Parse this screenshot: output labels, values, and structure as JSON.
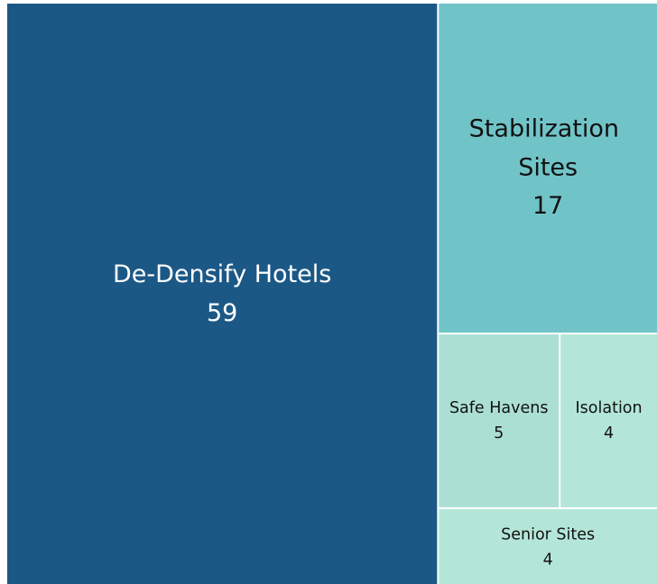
{
  "chart_data": {
    "type": "treemap",
    "categories": [
      "De-Densify Hotels",
      "Stabilization Sites",
      "Safe Havens",
      "Isolation",
      "Senior Sites"
    ],
    "values": [
      59,
      17,
      5,
      4,
      4
    ],
    "colors": [
      "#1b5886",
      "#70c4c8",
      "#acdfd3",
      "#b3e6d7",
      "#b4e6d7"
    ],
    "label_colors": [
      "#ffffff",
      "#111111",
      "#111111",
      "#111111",
      "#111111"
    ]
  }
}
